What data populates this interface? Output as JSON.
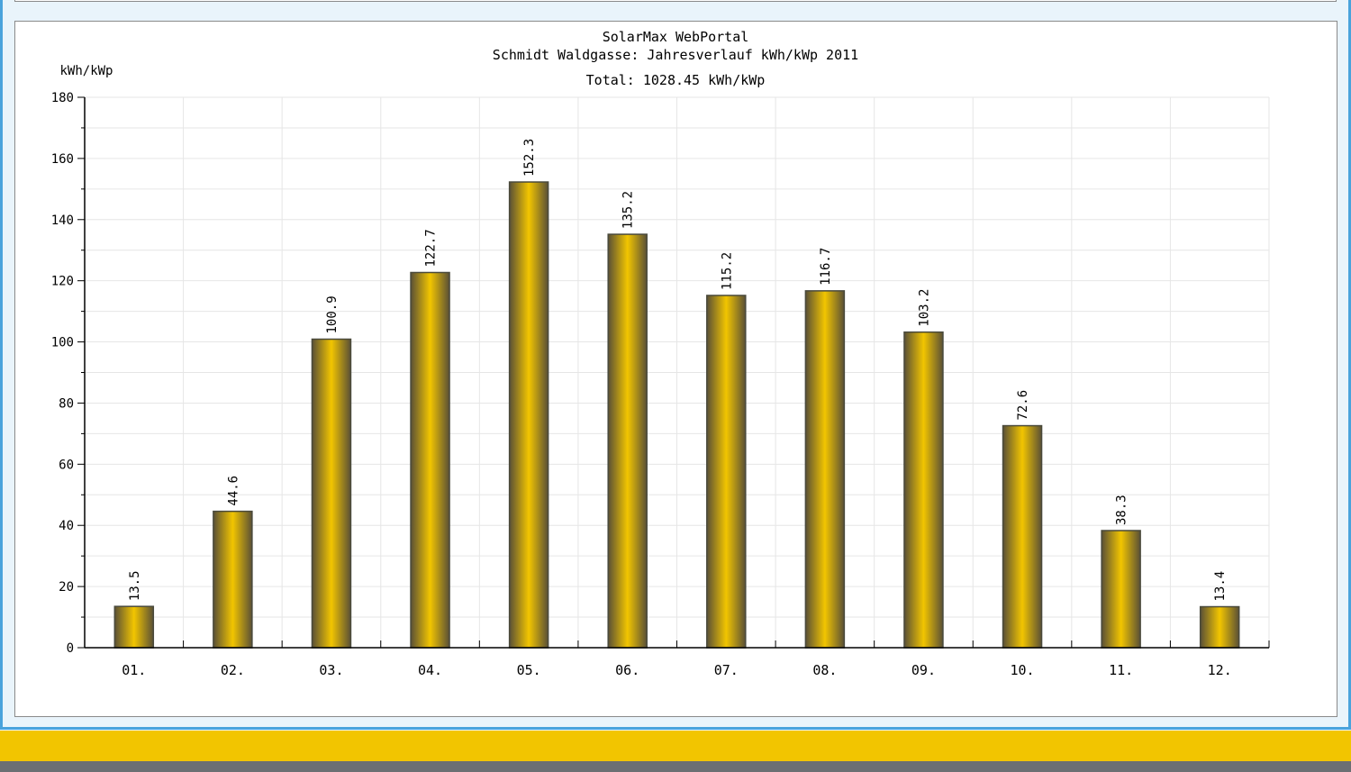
{
  "chart_data": {
    "type": "bar",
    "title": "SolarMax WebPortal",
    "subtitle": "Schmidt Waldgasse: Jahresverlauf kWh/kWp 2011",
    "total_label": "Total: 1028.45 kWh/kWp",
    "ylabel": "kWh/kWp",
    "xlabel": "",
    "ylim": [
      0,
      180
    ],
    "yticks": [
      "0",
      "20",
      "40",
      "60",
      "80",
      "100",
      "120",
      "140",
      "160",
      "180"
    ],
    "ytick_values": [
      0,
      20,
      40,
      60,
      80,
      100,
      120,
      140,
      160,
      180
    ],
    "categories": [
      "01.",
      "02.",
      "03.",
      "04.",
      "05.",
      "06.",
      "07.",
      "08.",
      "09.",
      "10.",
      "11.",
      "12."
    ],
    "values": [
      13.5,
      44.6,
      100.9,
      122.7,
      152.3,
      135.2,
      115.2,
      116.7,
      103.2,
      72.6,
      38.3,
      13.4
    ],
    "value_labels": [
      "13.5",
      "44.6",
      "100.9",
      "122.7",
      "152.3",
      "135.2",
      "115.2",
      "116.7",
      "103.2",
      "72.6",
      "38.3",
      "13.4"
    ],
    "grid": true,
    "bar_color": "#f2c500",
    "bar_edge_color": "#4a4a3c"
  },
  "colors": {
    "frame_border": "#4aa3dc",
    "footer_yellow": "#f2c500",
    "footer_gray": "#6b6f73"
  }
}
